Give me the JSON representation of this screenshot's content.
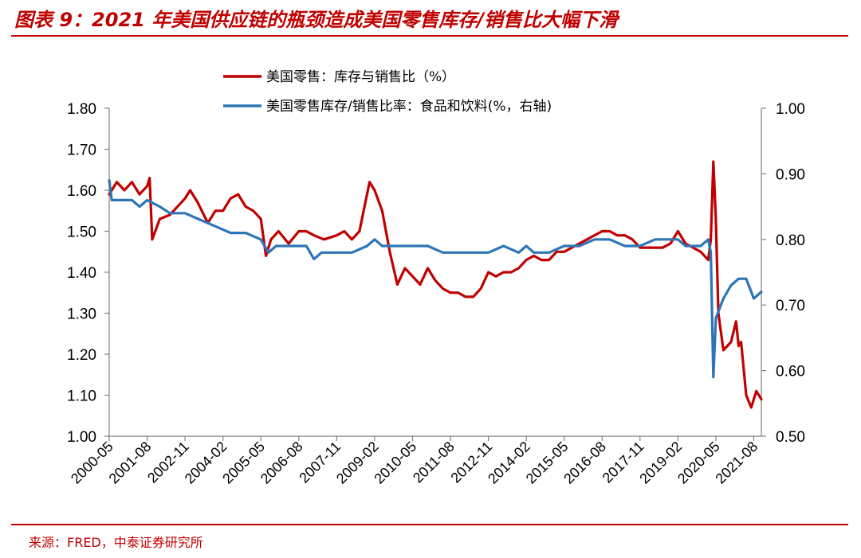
{
  "header": {
    "title": "图表 9：2021 年美国供应链的瓶颈造成美国零售库存/销售比大幅下滑"
  },
  "footer": {
    "source": "来源：FRED，中泰证券研究所"
  },
  "chart_data": {
    "type": "line",
    "title": "",
    "xlabel": "",
    "ylabel": "",
    "legend_position": "top-center",
    "grid": false,
    "x_range": [
      "2000-05",
      "2021-11"
    ],
    "ylim": [
      1.0,
      1.8
    ],
    "y2lim": [
      0.5,
      1.0
    ],
    "y_ticks": [
      "1.80",
      "1.70",
      "1.60",
      "1.50",
      "1.40",
      "1.30",
      "1.20",
      "1.10",
      "1.00"
    ],
    "y2_ticks": [
      "1.00",
      "0.90",
      "0.80",
      "0.70",
      "0.60",
      "0.50"
    ],
    "x_tick_labels": [
      "2000-05",
      "2001-08",
      "2002-11",
      "2004-02",
      "2005-05",
      "2006-08",
      "2007-11",
      "2009-02",
      "2010-05",
      "2011-08",
      "2012-11",
      "2014-02",
      "2015-05",
      "2016-08",
      "2017-11",
      "2019-02",
      "2020-05",
      "2021-08"
    ],
    "series": [
      {
        "name": "美国零售：库存与销售比（%）",
        "axis": "left",
        "color": "#c00000",
        "points": [
          [
            "2000-05",
            1.59
          ],
          [
            "2000-08",
            1.62
          ],
          [
            "2000-11",
            1.6
          ],
          [
            "2001-02",
            1.62
          ],
          [
            "2001-05",
            1.59
          ],
          [
            "2001-08",
            1.61
          ],
          [
            "2001-09",
            1.63
          ],
          [
            "2001-10",
            1.48
          ],
          [
            "2002-01",
            1.53
          ],
          [
            "2002-05",
            1.54
          ],
          [
            "2002-08",
            1.56
          ],
          [
            "2002-11",
            1.58
          ],
          [
            "2003-01",
            1.6
          ],
          [
            "2003-04",
            1.57
          ],
          [
            "2003-08",
            1.52
          ],
          [
            "2003-11",
            1.55
          ],
          [
            "2004-02",
            1.55
          ],
          [
            "2004-05",
            1.58
          ],
          [
            "2004-08",
            1.59
          ],
          [
            "2004-11",
            1.56
          ],
          [
            "2005-02",
            1.55
          ],
          [
            "2005-05",
            1.53
          ],
          [
            "2005-07",
            1.44
          ],
          [
            "2005-09",
            1.48
          ],
          [
            "2005-12",
            1.5
          ],
          [
            "2006-04",
            1.47
          ],
          [
            "2006-08",
            1.5
          ],
          [
            "2006-11",
            1.5
          ],
          [
            "2007-02",
            1.49
          ],
          [
            "2007-06",
            1.48
          ],
          [
            "2007-11",
            1.49
          ],
          [
            "2008-02",
            1.5
          ],
          [
            "2008-05",
            1.48
          ],
          [
            "2008-08",
            1.5
          ],
          [
            "2008-10",
            1.56
          ],
          [
            "2008-12",
            1.62
          ],
          [
            "2009-02",
            1.6
          ],
          [
            "2009-05",
            1.55
          ],
          [
            "2009-08",
            1.45
          ],
          [
            "2009-11",
            1.37
          ],
          [
            "2010-02",
            1.41
          ],
          [
            "2010-05",
            1.39
          ],
          [
            "2010-08",
            1.37
          ],
          [
            "2010-11",
            1.41
          ],
          [
            "2011-02",
            1.38
          ],
          [
            "2011-05",
            1.36
          ],
          [
            "2011-08",
            1.35
          ],
          [
            "2011-11",
            1.35
          ],
          [
            "2012-02",
            1.34
          ],
          [
            "2012-05",
            1.34
          ],
          [
            "2012-08",
            1.36
          ],
          [
            "2012-11",
            1.4
          ],
          [
            "2013-02",
            1.39
          ],
          [
            "2013-05",
            1.4
          ],
          [
            "2013-08",
            1.4
          ],
          [
            "2013-11",
            1.41
          ],
          [
            "2014-02",
            1.43
          ],
          [
            "2014-05",
            1.44
          ],
          [
            "2014-08",
            1.43
          ],
          [
            "2014-11",
            1.43
          ],
          [
            "2015-02",
            1.45
          ],
          [
            "2015-05",
            1.45
          ],
          [
            "2015-08",
            1.46
          ],
          [
            "2015-11",
            1.47
          ],
          [
            "2016-02",
            1.48
          ],
          [
            "2016-05",
            1.49
          ],
          [
            "2016-08",
            1.5
          ],
          [
            "2016-11",
            1.5
          ],
          [
            "2017-02",
            1.49
          ],
          [
            "2017-05",
            1.49
          ],
          [
            "2017-08",
            1.48
          ],
          [
            "2017-11",
            1.46
          ],
          [
            "2018-02",
            1.46
          ],
          [
            "2018-05",
            1.46
          ],
          [
            "2018-08",
            1.46
          ],
          [
            "2018-11",
            1.47
          ],
          [
            "2019-02",
            1.5
          ],
          [
            "2019-05",
            1.47
          ],
          [
            "2019-08",
            1.46
          ],
          [
            "2019-11",
            1.45
          ],
          [
            "2020-02",
            1.43
          ],
          [
            "2020-03",
            1.48
          ],
          [
            "2020-04",
            1.67
          ],
          [
            "2020-05",
            1.53
          ],
          [
            "2020-06",
            1.3
          ],
          [
            "2020-08",
            1.21
          ],
          [
            "2020-11",
            1.23
          ],
          [
            "2021-01",
            1.28
          ],
          [
            "2021-02",
            1.22
          ],
          [
            "2021-03",
            1.23
          ],
          [
            "2021-05",
            1.1
          ],
          [
            "2021-07",
            1.07
          ],
          [
            "2021-09",
            1.11
          ],
          [
            "2021-11",
            1.09
          ]
        ]
      },
      {
        "name": "美国零售库存/销售比率：食品和饮料(%，右轴)",
        "axis": "right",
        "color": "#2e75b6",
        "points": [
          [
            "2000-05",
            0.89
          ],
          [
            "2000-06",
            0.86
          ],
          [
            "2001-02",
            0.86
          ],
          [
            "2001-05",
            0.85
          ],
          [
            "2001-08",
            0.86
          ],
          [
            "2002-01",
            0.85
          ],
          [
            "2002-05",
            0.84
          ],
          [
            "2002-11",
            0.84
          ],
          [
            "2003-05",
            0.83
          ],
          [
            "2003-11",
            0.82
          ],
          [
            "2004-05",
            0.81
          ],
          [
            "2004-11",
            0.81
          ],
          [
            "2005-05",
            0.8
          ],
          [
            "2005-08",
            0.78
          ],
          [
            "2005-11",
            0.79
          ],
          [
            "2006-05",
            0.79
          ],
          [
            "2006-11",
            0.79
          ],
          [
            "2007-02",
            0.77
          ],
          [
            "2007-05",
            0.78
          ],
          [
            "2007-11",
            0.78
          ],
          [
            "2008-05",
            0.78
          ],
          [
            "2008-11",
            0.79
          ],
          [
            "2009-02",
            0.8
          ],
          [
            "2009-05",
            0.79
          ],
          [
            "2009-11",
            0.79
          ],
          [
            "2010-05",
            0.79
          ],
          [
            "2010-11",
            0.79
          ],
          [
            "2011-05",
            0.78
          ],
          [
            "2011-11",
            0.78
          ],
          [
            "2012-05",
            0.78
          ],
          [
            "2012-11",
            0.78
          ],
          [
            "2013-05",
            0.79
          ],
          [
            "2013-11",
            0.78
          ],
          [
            "2014-02",
            0.79
          ],
          [
            "2014-05",
            0.78
          ],
          [
            "2014-11",
            0.78
          ],
          [
            "2015-05",
            0.79
          ],
          [
            "2015-11",
            0.79
          ],
          [
            "2016-05",
            0.8
          ],
          [
            "2016-11",
            0.8
          ],
          [
            "2017-05",
            0.79
          ],
          [
            "2017-11",
            0.79
          ],
          [
            "2018-05",
            0.8
          ],
          [
            "2018-11",
            0.8
          ],
          [
            "2019-02",
            0.8
          ],
          [
            "2019-05",
            0.79
          ],
          [
            "2019-11",
            0.79
          ],
          [
            "2020-02",
            0.8
          ],
          [
            "2020-03",
            0.78
          ],
          [
            "2020-04",
            0.59
          ],
          [
            "2020-05",
            0.68
          ],
          [
            "2020-08",
            0.71
          ],
          [
            "2020-11",
            0.73
          ],
          [
            "2021-02",
            0.74
          ],
          [
            "2021-05",
            0.74
          ],
          [
            "2021-08",
            0.71
          ],
          [
            "2021-11",
            0.72
          ]
        ]
      }
    ]
  }
}
